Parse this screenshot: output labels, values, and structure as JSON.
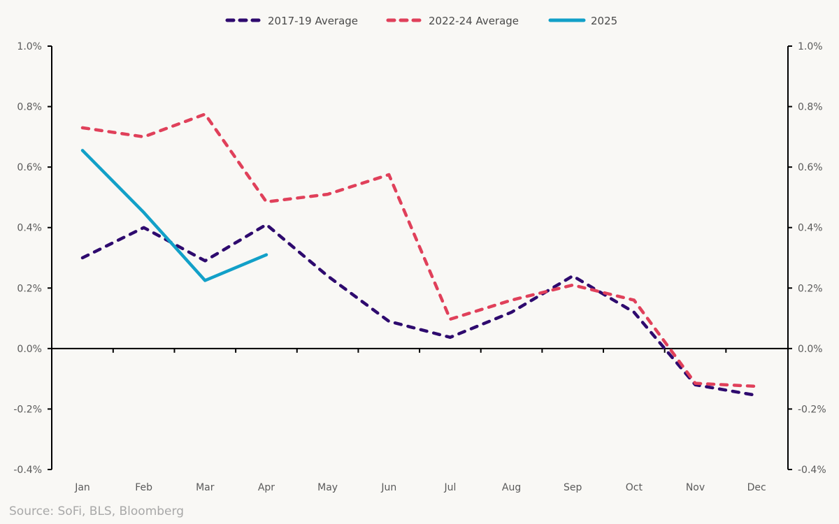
{
  "chart_data": {
    "type": "line",
    "title": "",
    "xlabel": "",
    "ylabel": "",
    "categories": [
      "Jan",
      "Feb",
      "Mar",
      "Apr",
      "May",
      "Jun",
      "Jul",
      "Aug",
      "Sep",
      "Oct",
      "Nov",
      "Dec"
    ],
    "ylim": [
      -0.4,
      1.0
    ],
    "yticks": [
      1.0,
      0.8,
      0.6,
      0.4,
      0.2,
      0.0,
      -0.2,
      -0.4
    ],
    "ytick_labels": [
      "1.0%",
      "0.8%",
      "0.6%",
      "0.4%",
      "0.2%",
      "0.0%",
      "-0.2%",
      "-0.4%"
    ],
    "y_unit": "%",
    "grid": false,
    "dual_y_axis": true,
    "legend_position": "top-center",
    "series": [
      {
        "name": "2017-19 Average",
        "style": "dashed",
        "color": "#2e0a6e",
        "values": [
          0.3,
          0.4,
          0.29,
          0.41,
          0.24,
          0.09,
          0.037,
          0.12,
          0.24,
          0.12,
          -0.12,
          -0.155
        ]
      },
      {
        "name": "2022-24 Average",
        "style": "dashed",
        "color": "#e0405a",
        "values": [
          0.73,
          0.7,
          0.775,
          0.485,
          0.51,
          0.575,
          0.097,
          0.16,
          0.21,
          0.16,
          -0.115,
          -0.125
        ]
      },
      {
        "name": "2025",
        "style": "solid",
        "color": "#12a0c8",
        "values": [
          0.655,
          0.45,
          0.225,
          0.31
        ]
      }
    ]
  },
  "source": "Source: SoFi, BLS, Bloomberg"
}
